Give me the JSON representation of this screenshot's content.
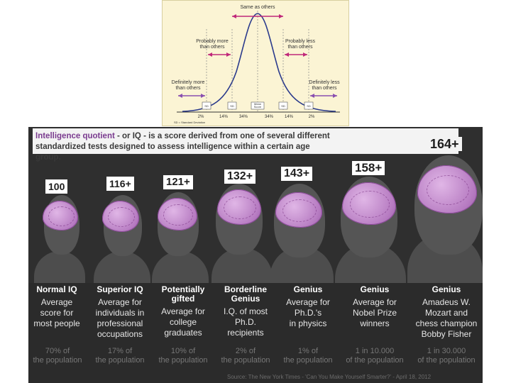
{
  "bell_curve": {
    "same_label": "Same as others",
    "prob_more_label": "Probably more\nthan others",
    "prob_less_label": "Probably less\nthan others",
    "def_more_label": "Definitely more\nthan others",
    "def_less_label": "Definitely less\nthan others",
    "sd_note": "SD = Standard Deviation",
    "boxes": [
      "SD",
      "SD",
      "Mean\nScore",
      "SD",
      "SD"
    ],
    "percents": [
      "2%",
      "14%",
      "34%",
      "34%",
      "14%",
      "2%"
    ],
    "colors": {
      "curve": "#2a3a8c",
      "arrow_pink": "#c0287a",
      "arrow_purple": "#8a4fb0",
      "bg": "#fbf4d4"
    }
  },
  "intro": {
    "highlight": "Intelligence quotient",
    "text_rest": " - or IQ - is a score derived from one of several different standardized tests designed to assess intelligence within a certain age group."
  },
  "columns": [
    {
      "iq": "100",
      "title": "Normal IQ",
      "desc": "Average\nscore for\nmost people",
      "stat": "70% of\nthe population"
    },
    {
      "iq": "116+",
      "title": "Superior IQ",
      "desc": "Average for\nindividuals in\nprofessional\noccupations",
      "stat": "17% of\nthe population"
    },
    {
      "iq": "121+",
      "title": "Potentially\ngifted",
      "desc": "Average for\ncollege\ngraduates",
      "stat": "10% of\nthe population"
    },
    {
      "iq": "132+",
      "title": "Borderline\nGenius",
      "desc": "I.Q. of most\nPh.D.\nrecipients",
      "stat": "2% of\nthe population"
    },
    {
      "iq": "143+",
      "title": "Genius",
      "desc": "Average for\nPh.D.'s\nin physics",
      "stat": "1% of\nthe population"
    },
    {
      "iq": "158+",
      "title": "Genius",
      "desc": "Average for\nNobel Prize\nwinners",
      "stat": "1 in 10.000\nof the population"
    },
    {
      "iq": "164+",
      "title": "Genius",
      "desc": "Amadeus W.\nMozart and\nchess champion\nBobby Fisher",
      "stat": "1 in 30.000\nof the population"
    }
  ],
  "source": "Source: The New York Times - 'Can You Make Yourself Smarter?' - April 18, 2012",
  "colors": {
    "brain": "#b77cc2",
    "panel_bg": "#2f2f2f",
    "accent": "#7a3b8f"
  }
}
